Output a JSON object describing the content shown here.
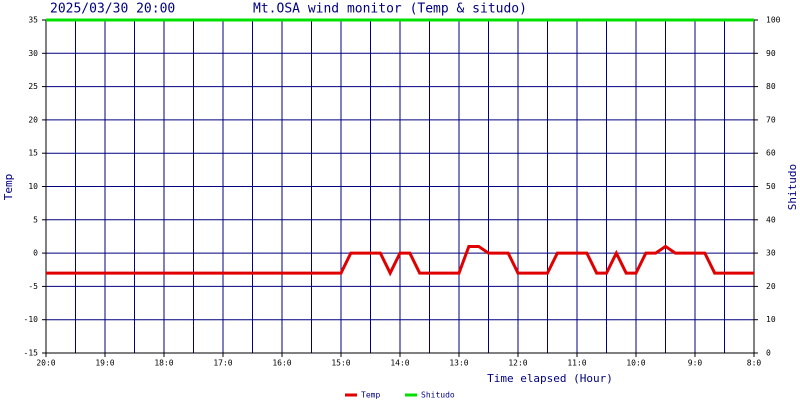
{
  "chart_data": {
    "type": "line",
    "title": "Mt.OSA wind monitor (Temp & situdo)",
    "subtitle": "2025/03/30 20:00",
    "xlabel": "Time elapsed (Hour)",
    "ylabel": "Temp",
    "y2label": "Shitudo",
    "xlim": [
      0,
      720
    ],
    "xticks": [
      {
        "value": 0,
        "label": "20:0"
      },
      {
        "value": 60,
        "label": "19:0"
      },
      {
        "value": 120,
        "label": "18:0"
      },
      {
        "value": 180,
        "label": "17:0"
      },
      {
        "value": 240,
        "label": "16:0"
      },
      {
        "value": 300,
        "label": "15:0"
      },
      {
        "value": 360,
        "label": "14:0"
      },
      {
        "value": 420,
        "label": "13:0"
      },
      {
        "value": 480,
        "label": "12:0"
      },
      {
        "value": 540,
        "label": "11:0"
      },
      {
        "value": 600,
        "label": "10:0"
      },
      {
        "value": 660,
        "label": "9:0"
      },
      {
        "value": 720,
        "label": "8:0"
      }
    ],
    "xgrid": [
      0,
      30,
      60,
      90,
      120,
      150,
      180,
      210,
      240,
      270,
      300,
      330,
      360,
      390,
      420,
      450,
      480,
      510,
      540,
      570,
      600,
      630,
      660,
      690,
      720
    ],
    "ylim": [
      -15,
      35
    ],
    "yticks": [
      -15,
      -10,
      -5,
      0,
      5,
      10,
      15,
      20,
      25,
      30,
      35
    ],
    "y2lim": [
      0,
      100
    ],
    "y2ticks": [
      0,
      10,
      20,
      30,
      40,
      50,
      60,
      70,
      80,
      90,
      100
    ],
    "grid": true,
    "legend": "bottom",
    "x": [
      0,
      10,
      20,
      30,
      40,
      50,
      60,
      70,
      80,
      90,
      100,
      110,
      120,
      130,
      140,
      150,
      160,
      170,
      180,
      190,
      200,
      210,
      220,
      230,
      240,
      250,
      260,
      270,
      280,
      290,
      300,
      310,
      320,
      330,
      340,
      350,
      360,
      370,
      380,
      390,
      400,
      410,
      420,
      430,
      440,
      450,
      460,
      470,
      480,
      490,
      500,
      510,
      520,
      530,
      540,
      550,
      560,
      570,
      580,
      590,
      600,
      610,
      620,
      630,
      640,
      650,
      660,
      670,
      680,
      690,
      700,
      710,
      720
    ],
    "series": [
      {
        "name": "Temp",
        "color": "#e00000",
        "values": [
          -3,
          -3,
          -3,
          -3,
          -3,
          -3,
          -3,
          -3,
          -3,
          -3,
          -3,
          -3,
          -3,
          -3,
          -3,
          -3,
          -3,
          -3,
          -3,
          -3,
          -3,
          -3,
          -3,
          -3,
          -3,
          -3,
          -3,
          -3,
          -3,
          -3,
          -3,
          0,
          0,
          0,
          0,
          -3,
          0,
          0,
          -3,
          -3,
          -3,
          -3,
          -3,
          1,
          1,
          0,
          0,
          0,
          -3,
          -3,
          -3,
          -3,
          0,
          0,
          0,
          0,
          -3,
          -3,
          0,
          -3,
          -3,
          0,
          0,
          1,
          0,
          0,
          0,
          0,
          -3,
          -3,
          -3,
          -3,
          -3
        ]
      },
      {
        "name": "Shitudo",
        "color": "#00e000",
        "axis": "y2",
        "values": [
          100,
          100,
          100,
          100,
          100,
          100,
          100,
          100,
          100,
          100,
          100,
          100,
          100,
          100,
          100,
          100,
          100,
          100,
          100,
          100,
          100,
          100,
          100,
          100,
          100,
          100,
          100,
          100,
          100,
          100,
          100,
          100,
          100,
          100,
          100,
          100,
          100,
          100,
          100,
          100,
          100,
          100,
          100,
          100,
          100,
          100,
          100,
          100,
          100,
          100,
          100,
          100,
          100,
          100,
          100,
          100,
          100,
          100,
          100,
          100,
          100,
          100,
          100,
          100,
          100,
          100,
          100,
          100,
          100,
          100,
          100,
          100,
          100
        ]
      }
    ]
  }
}
